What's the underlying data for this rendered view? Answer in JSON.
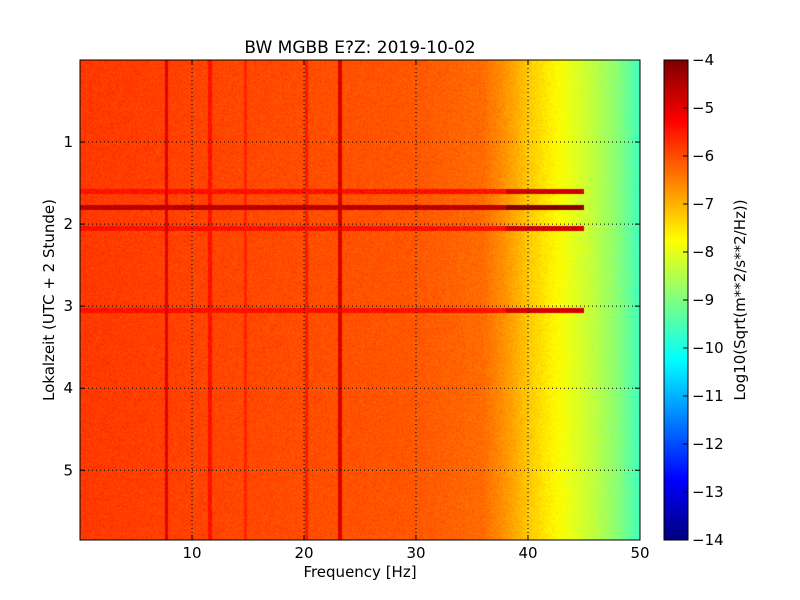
{
  "chart_data": {
    "type": "heatmap",
    "title": "BW MGBB E?Z: 2019-10-02",
    "xlabel": "Frequency [Hz]",
    "ylabel": "Lokalzeit (UTC + 2 Stunde)",
    "xlim": [
      0,
      50
    ],
    "ylim": [
      0,
      5.85
    ],
    "y_inverted": true,
    "x_ticks": [
      10,
      20,
      30,
      40,
      50
    ],
    "y_ticks": [
      1,
      2,
      3,
      4,
      5
    ],
    "grid": true,
    "colormap": "jet",
    "colorbar": {
      "label": "Log10(Sqrt(m**2/s**2/Hz))",
      "range": [
        -14,
        -4
      ],
      "ticks": [
        -4,
        -5,
        -6,
        -7,
        -8,
        -9,
        -10,
        -11,
        -12,
        -13,
        -14
      ]
    },
    "base_level_by_frequency": {
      "frequency_hz": [
        0,
        10,
        20,
        30,
        36,
        38,
        40,
        42,
        44,
        46,
        48,
        50
      ],
      "log10_amplitude": [
        -5.8,
        -5.9,
        -6.0,
        -6.1,
        -6.3,
        -6.7,
        -7.2,
        -7.6,
        -8.0,
        -8.4,
        -8.9,
        -9.6
      ]
    },
    "vertical_lines_hz": [
      {
        "frequency": 7.7,
        "level": -5.0
      },
      {
        "frequency": 11.6,
        "level": -5.4
      },
      {
        "frequency": 14.8,
        "level": -5.6
      },
      {
        "frequency": 20.2,
        "level": -5.5
      },
      {
        "frequency": 23.2,
        "level": -4.9
      }
    ],
    "horizontal_bands_h": [
      {
        "time": 1.6,
        "level": -5.4
      },
      {
        "time": 1.8,
        "level": -4.6
      },
      {
        "time": 2.05,
        "level": -5.4
      },
      {
        "time": 3.05,
        "level": -5.4
      }
    ]
  }
}
